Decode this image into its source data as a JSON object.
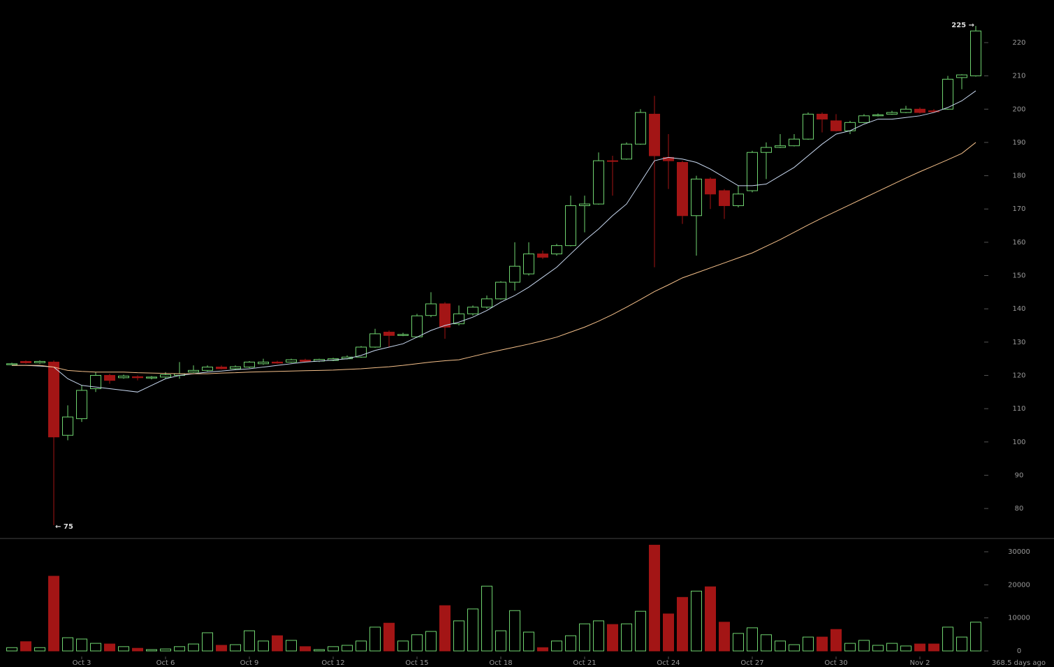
{
  "chart_data": [
    {
      "type": "candlestick",
      "up_color": "#6fd36f",
      "down_color": "#a31515",
      "open": [
        123.2,
        124.2,
        123.8,
        124,
        102,
        107,
        116,
        120,
        119.3,
        119.6,
        119.2,
        119.5,
        120,
        121,
        121.5,
        122.5,
        122,
        122.5,
        123.5,
        124,
        124,
        124.6,
        124.3,
        124.5,
        125,
        125.5,
        128.5,
        133,
        132,
        131.6,
        138,
        141.5,
        135.5,
        138.5,
        140.5,
        143,
        148,
        150.5,
        156.5,
        156.5,
        159,
        171,
        171.5,
        184.5,
        185,
        189.5,
        198.5,
        185.5,
        184,
        168,
        179,
        175.5,
        171,
        175.5,
        187,
        188.5,
        189,
        191,
        198.5,
        196.5,
        193.5,
        196,
        198,
        198.5,
        199,
        200,
        199.5,
        200,
        209.5,
        210
      ],
      "high": [
        123.8,
        124.5,
        124.5,
        124.5,
        111,
        117,
        121,
        120.5,
        120.2,
        120,
        119.8,
        121,
        124,
        123,
        123,
        123,
        123,
        124.3,
        125,
        124.4,
        125,
        125,
        125,
        125.3,
        126,
        128.8,
        134,
        133.5,
        132.8,
        138.5,
        145,
        142,
        141,
        141,
        144,
        148.3,
        160,
        160,
        157.5,
        159.5,
        174,
        174,
        187,
        186,
        190,
        200,
        204,
        192.5,
        184.5,
        180,
        179.5,
        176,
        177,
        187.5,
        190,
        192.5,
        192.5,
        199,
        199,
        198.5,
        196.5,
        198.5,
        198.7,
        199.5,
        201,
        200.5,
        200,
        210,
        210.5,
        225
      ],
      "low": [
        123,
        123.5,
        123.5,
        75,
        100.5,
        106,
        115,
        117.5,
        119,
        118.5,
        118.8,
        119,
        119,
        120.8,
        121.2,
        121.8,
        121.7,
        122.2,
        123.2,
        123.5,
        123.8,
        124,
        124,
        124.3,
        124.8,
        125.3,
        128.3,
        128.5,
        131.8,
        131.3,
        137.5,
        131,
        135,
        138,
        140,
        142.8,
        145.5,
        150,
        155,
        156,
        158.8,
        163,
        171.3,
        174,
        184.8,
        189.3,
        152.5,
        176,
        165.5,
        156,
        170,
        167,
        170.5,
        175,
        179,
        188.3,
        188.8,
        190.8,
        193,
        193.3,
        192.5,
        195.8,
        197.8,
        198.3,
        198.8,
        198.7,
        199,
        199.8,
        206,
        209.8
      ],
      "close": [
        123.5,
        123.8,
        124.2,
        101.5,
        107.5,
        115.5,
        120,
        118.5,
        119.8,
        119.3,
        119.5,
        120.2,
        120.5,
        121.5,
        122.5,
        122,
        122.6,
        124,
        124,
        123.7,
        124.7,
        124.2,
        124.8,
        125,
        125.5,
        128.5,
        132.5,
        132,
        132.3,
        137.9,
        141.5,
        134.5,
        138.5,
        140.5,
        143,
        148,
        152.8,
        156.5,
        155.5,
        159,
        171,
        171.5,
        184.5,
        184.3,
        189.5,
        199,
        186,
        184.5,
        168,
        179,
        174.5,
        171,
        174.5,
        187,
        188.5,
        189,
        191,
        198.5,
        197,
        193.5,
        196,
        198,
        198.3,
        199,
        200,
        199,
        199.2,
        209,
        210.3,
        223.5
      ],
      "series": [
        {
          "color": "#c8d8f0",
          "values": [
            123,
            123,
            122.8,
            122.5,
            119,
            117,
            116.5,
            116,
            115.5,
            115,
            117,
            119,
            120,
            120.5,
            121,
            121.3,
            121.7,
            122,
            122.5,
            123,
            123.5,
            124,
            124.3,
            124.6,
            125,
            126,
            127.5,
            128.5,
            129.5,
            131.5,
            133.5,
            135,
            136,
            137.5,
            139.5,
            142,
            144,
            146.5,
            149.5,
            152.5,
            156.5,
            160.5,
            164,
            168,
            171.5,
            178,
            184.5,
            185.5,
            185,
            184,
            182,
            179.5,
            177,
            177,
            177.5,
            180,
            182.5,
            186,
            189.5,
            192.5,
            193.5,
            195.5,
            197,
            197,
            197.5,
            198,
            199,
            200.5,
            202.5,
            205.5
          ]
        },
        {
          "color": "#f5c08a",
          "values": [
            123,
            123,
            123,
            122.5,
            121.5,
            121.2,
            121,
            121,
            121,
            120.8,
            120.7,
            120.6,
            120.5,
            120.5,
            120.5,
            120.7,
            120.8,
            121,
            121.1,
            121.2,
            121.3,
            121.4,
            121.5,
            121.6,
            121.8,
            122,
            122.3,
            122.6,
            123,
            123.5,
            124,
            124.4,
            124.7,
            125.7,
            126.7,
            127.6,
            128.5,
            129.4,
            130.4,
            131.5,
            133,
            134.5,
            136.3,
            138.3,
            140.5,
            142.8,
            145.2,
            147.2,
            149.3,
            150.8,
            152.3,
            153.8,
            155.3,
            156.8,
            158.8,
            160.8,
            163,
            165.2,
            167.3,
            169.3,
            171.3,
            173.3,
            175.3,
            177.3,
            179.3,
            181.2,
            183,
            184.8,
            186.7,
            190
          ]
        }
      ],
      "ylim": [
        71.2,
        232.8
      ],
      "yticks": [
        80,
        90,
        100,
        110,
        120,
        130,
        140,
        150,
        160,
        170,
        180,
        190,
        200,
        210,
        220
      ],
      "annotations": [
        "← 75",
        "225 →"
      ]
    },
    {
      "type": "bar",
      "categories": [
        null,
        null,
        null,
        null,
        null,
        "Oct 3",
        null,
        null,
        null,
        null,
        null,
        "Oct 6",
        null,
        null,
        null,
        null,
        null,
        "Oct 9",
        null,
        null,
        null,
        null,
        null,
        "Oct 12",
        null,
        null,
        null,
        null,
        null,
        "Oct 15",
        null,
        null,
        null,
        null,
        null,
        "Oct 18",
        null,
        null,
        null,
        null,
        null,
        "Oct 21",
        null,
        null,
        null,
        null,
        null,
        "Oct 24",
        null,
        null,
        null,
        null,
        null,
        "Oct 27",
        null,
        null,
        null,
        null,
        null,
        "Oct 30",
        null,
        null,
        null,
        null,
        null,
        "Nov 2",
        null,
        null,
        null,
        null
      ],
      "values": [
        1000,
        2800,
        1000,
        22600,
        4000,
        3600,
        2300,
        2100,
        1300,
        800,
        400,
        600,
        1300,
        2100,
        5500,
        1700,
        1900,
        6100,
        3000,
        4600,
        3200,
        1300,
        400,
        1300,
        1700,
        3000,
        7200,
        8400,
        3000,
        4900,
        5900,
        13700,
        9100,
        12700,
        19600,
        6100,
        12200,
        5700,
        1000,
        3000,
        4600,
        8200,
        9100,
        8000,
        8200,
        12000,
        32000,
        11200,
        16200,
        18100,
        19400,
        8700,
        5300,
        7000,
        4900,
        3000,
        1900,
        4200,
        4200,
        6500,
        2300,
        3200,
        1700,
        2300,
        1500,
        2100,
        2100,
        7200,
        4200,
        8700
      ],
      "ylim": [
        -1690,
        33170
      ],
      "yticks": [
        0,
        10000,
        20000,
        30000
      ],
      "footer": "368.5 days ago"
    }
  ]
}
